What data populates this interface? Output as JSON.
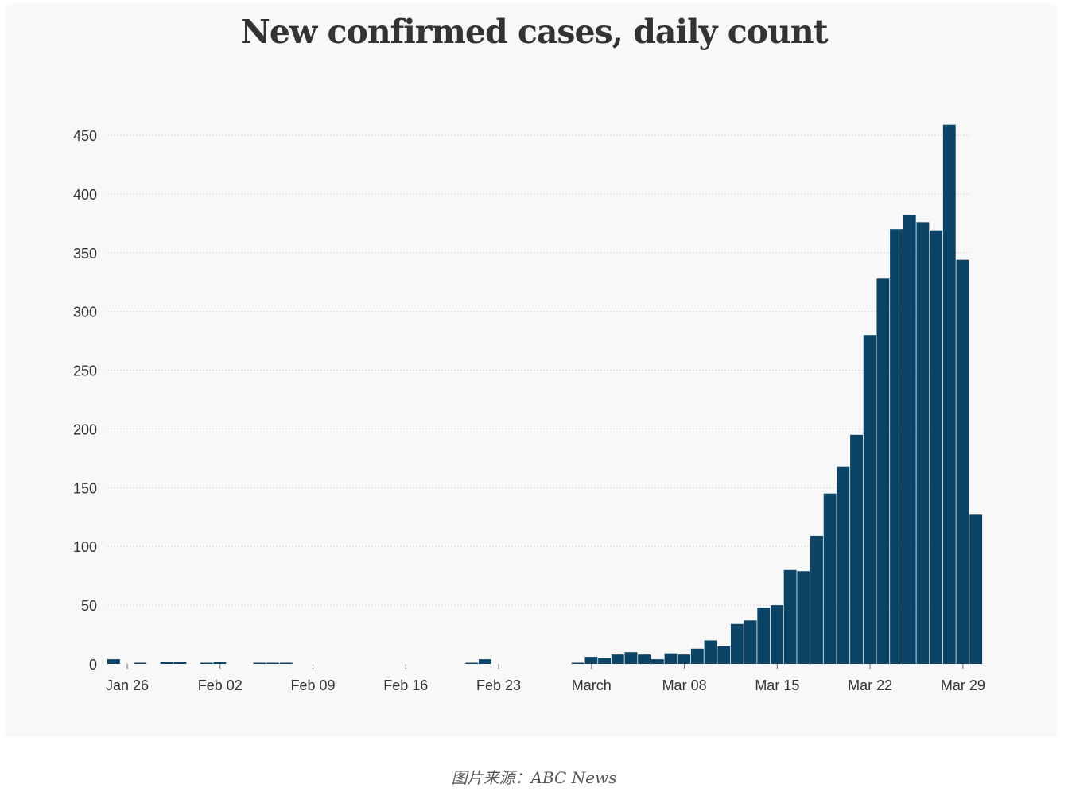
{
  "caption": "图片来源：ABC News",
  "chart_data": {
    "type": "bar",
    "title": "New confirmed cases, daily count",
    "xlabel": "",
    "ylabel": "",
    "ylim": [
      0,
      460
    ],
    "yticks": [
      0,
      50,
      100,
      150,
      200,
      250,
      300,
      350,
      400,
      450
    ],
    "grid": true,
    "bar_color": "#0b4466",
    "xtick_labels": [
      {
        "date": "2020-01-26",
        "label": "Jan 26"
      },
      {
        "date": "2020-02-02",
        "label": "Feb 02"
      },
      {
        "date": "2020-02-09",
        "label": "Feb 09"
      },
      {
        "date": "2020-02-16",
        "label": "Feb 16"
      },
      {
        "date": "2020-02-23",
        "label": "Feb 23"
      },
      {
        "date": "2020-03-01",
        "label": "March"
      },
      {
        "date": "2020-03-08",
        "label": "Mar 08"
      },
      {
        "date": "2020-03-15",
        "label": "Mar 15"
      },
      {
        "date": "2020-03-22",
        "label": "Mar 22"
      },
      {
        "date": "2020-03-29",
        "label": "Mar 29"
      }
    ],
    "x": [
      "2020-01-25",
      "2020-01-26",
      "2020-01-27",
      "2020-01-28",
      "2020-01-29",
      "2020-01-30",
      "2020-01-31",
      "2020-02-01",
      "2020-02-02",
      "2020-02-03",
      "2020-02-04",
      "2020-02-05",
      "2020-02-06",
      "2020-02-07",
      "2020-02-08",
      "2020-02-09",
      "2020-02-10",
      "2020-02-11",
      "2020-02-12",
      "2020-02-13",
      "2020-02-14",
      "2020-02-15",
      "2020-02-16",
      "2020-02-17",
      "2020-02-18",
      "2020-02-19",
      "2020-02-20",
      "2020-02-21",
      "2020-02-22",
      "2020-02-23",
      "2020-02-24",
      "2020-02-25",
      "2020-02-26",
      "2020-02-27",
      "2020-02-28",
      "2020-02-29",
      "2020-03-01",
      "2020-03-02",
      "2020-03-03",
      "2020-03-04",
      "2020-03-05",
      "2020-03-06",
      "2020-03-07",
      "2020-03-08",
      "2020-03-09",
      "2020-03-10",
      "2020-03-11",
      "2020-03-12",
      "2020-03-13",
      "2020-03-14",
      "2020-03-15",
      "2020-03-16",
      "2020-03-17",
      "2020-03-18",
      "2020-03-19",
      "2020-03-20",
      "2020-03-21",
      "2020-03-22",
      "2020-03-23",
      "2020-03-24",
      "2020-03-25",
      "2020-03-26",
      "2020-03-27",
      "2020-03-28",
      "2020-03-29",
      "2020-03-30"
    ],
    "values": [
      4,
      0,
      1,
      0,
      2,
      2,
      0,
      1,
      2,
      0,
      0,
      1,
      1,
      1,
      0,
      0,
      0,
      0,
      0,
      0,
      0,
      0,
      0,
      0,
      0,
      0,
      0,
      1,
      4,
      0,
      0,
      0,
      0,
      0,
      0,
      1,
      6,
      5,
      8,
      10,
      8,
      4,
      9,
      8,
      13,
      20,
      15,
      34,
      37,
      48,
      50,
      80,
      79,
      109,
      145,
      168,
      195,
      280,
      328,
      370,
      382,
      376,
      369,
      459,
      344,
      127
    ]
  }
}
